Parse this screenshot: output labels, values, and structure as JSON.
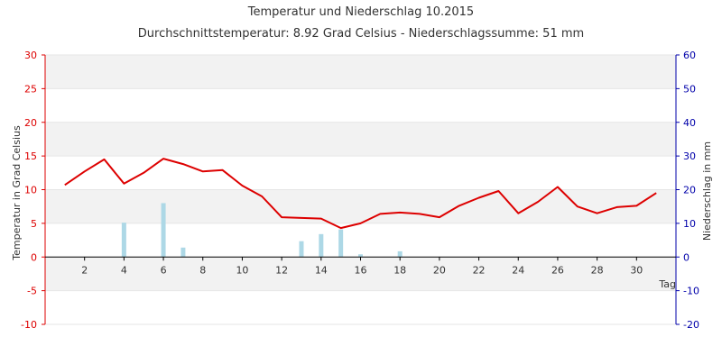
{
  "chart_data": {
    "type": "line",
    "title": "Temperatur und Niederschlag 10.2015",
    "subtitle": "Durchschnittstemperatur: 8.92 Grad Celsius   -   Niederschlagssumme: 51 mm",
    "xlabel": "Tag",
    "ylabel_left": "Temperatur in Grad Celsius",
    "ylabel_right": "Niederschlag in mm",
    "xlim": [
      0,
      32
    ],
    "ylim_left": [
      -10,
      30
    ],
    "ylim_right": [
      -20,
      60
    ],
    "x_ticks": [
      2,
      4,
      6,
      8,
      10,
      12,
      14,
      16,
      18,
      20,
      22,
      24,
      26,
      28,
      30
    ],
    "y_ticks_left": [
      -10,
      -5,
      0,
      5,
      10,
      15,
      20,
      25,
      30
    ],
    "y_ticks_right": [
      -20,
      -10,
      0,
      10,
      20,
      30,
      40,
      50,
      60
    ],
    "grid": true,
    "series": [
      {
        "kind": "line",
        "axis": "left",
        "color": "#dd0000",
        "x": [
          1,
          2,
          3,
          4,
          5,
          6,
          7,
          8,
          9,
          10,
          11,
          12,
          13,
          14,
          15,
          16,
          17,
          18,
          19,
          20,
          21,
          22,
          23,
          24,
          25,
          26,
          27,
          28,
          29,
          30,
          31
        ],
        "values": [
          10.7,
          12.7,
          14.5,
          10.9,
          12.5,
          14.6,
          13.8,
          12.7,
          12.9,
          10.6,
          9.0,
          5.9,
          5.8,
          5.7,
          4.3,
          5.0,
          6.4,
          6.6,
          6.4,
          5.9,
          7.6,
          8.8,
          9.8,
          6.5,
          8.2,
          10.4,
          7.5,
          6.5,
          7.4,
          7.6,
          9.5
        ]
      },
      {
        "kind": "bar",
        "axis": "right",
        "color": "#add8e6",
        "x": [
          1,
          2,
          3,
          4,
          5,
          6,
          7,
          8,
          9,
          10,
          11,
          12,
          13,
          14,
          15,
          16,
          17,
          18,
          19,
          20,
          21,
          22,
          23,
          24,
          25,
          26,
          27,
          28,
          29,
          30,
          31
        ],
        "values": [
          0,
          0,
          0,
          10.2,
          0,
          16,
          2.8,
          0,
          0,
          0,
          0,
          0,
          4.7,
          6.8,
          8.2,
          0.8,
          0,
          1.7,
          0,
          0,
          0,
          0,
          0,
          0,
          0,
          0,
          0,
          0,
          0,
          0,
          0
        ]
      }
    ]
  }
}
